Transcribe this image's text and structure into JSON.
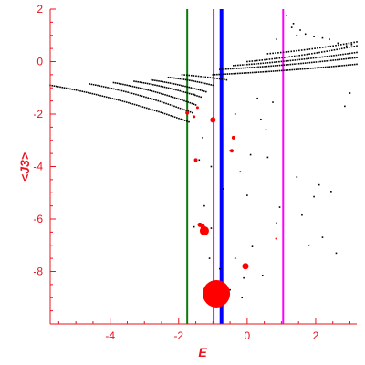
{
  "chart_data": {
    "type": "scatter",
    "title": "",
    "xlabel": "E",
    "ylabel": "<J3>",
    "xlim": [
      -5.75,
      3.2
    ],
    "ylim": [
      -10.0,
      2.0
    ],
    "x_ticks": [
      -4,
      -2,
      0,
      2
    ],
    "y_ticks": [
      2,
      0,
      -2,
      -4,
      -6,
      -8
    ],
    "grid": false,
    "colors": {
      "axis": "#e8141e",
      "black_points": "#000000",
      "red_points": "#ff0000",
      "green_line": "#0a7a0a",
      "blue_line": "#0000ff",
      "magenta_line": "#ff00ff"
    },
    "vertical_lines": [
      {
        "x": -1.75,
        "color": "#0a7a0a",
        "width": 2
      },
      {
        "x": -0.98,
        "color": "#ff00ff",
        "width": 2
      },
      {
        "x": -0.75,
        "color": "#0000ff",
        "width": 4
      },
      {
        "x": 1.05,
        "color": "#ff00ff",
        "width": 2
      }
    ],
    "black_bands": [
      {
        "x_start": -5.75,
        "y_start": -0.9,
        "x_end": -1.7,
        "y_end": -2.3,
        "n": 70
      },
      {
        "x_start": -4.6,
        "y_start": -0.85,
        "x_end": -1.6,
        "y_end": -1.95,
        "n": 52
      },
      {
        "x_start": -3.9,
        "y_start": -0.8,
        "x_end": -1.5,
        "y_end": -1.65,
        "n": 44
      },
      {
        "x_start": -3.3,
        "y_start": -0.75,
        "x_end": -1.35,
        "y_end": -1.35,
        "n": 36
      },
      {
        "x_start": -2.8,
        "y_start": -0.7,
        "x_end": -1.2,
        "y_end": -1.15,
        "n": 30
      },
      {
        "x_start": -2.3,
        "y_start": -0.6,
        "x_end": -1.0,
        "y_end": -0.9,
        "n": 24
      },
      {
        "x_start": -1.9,
        "y_start": -0.5,
        "x_end": -0.6,
        "y_end": -0.7,
        "n": 20
      },
      {
        "x_start": -1.0,
        "y_start": -0.5,
        "x_end": 3.2,
        "y_end": -0.1,
        "n": 70
      },
      {
        "x_start": -0.8,
        "y_start": -0.3,
        "x_end": 3.2,
        "y_end": 0.15,
        "n": 65
      },
      {
        "x_start": -0.4,
        "y_start": -0.15,
        "x_end": 3.2,
        "y_end": 0.35,
        "n": 55
      },
      {
        "x_start": 0.0,
        "y_start": 0.0,
        "x_end": 3.2,
        "y_end": 0.6,
        "n": 45
      },
      {
        "x_start": 0.6,
        "y_start": 0.3,
        "x_end": 3.2,
        "y_end": 0.75,
        "n": 35
      }
    ],
    "black_points": [
      [
        1.15,
        1.75
      ],
      [
        1.35,
        1.45
      ],
      [
        1.55,
        1.2
      ],
      [
        1.7,
        1.05
      ],
      [
        1.3,
        1.3
      ],
      [
        1.45,
        1.0
      ],
      [
        0.85,
        0.85
      ],
      [
        1.95,
        0.95
      ],
      [
        2.2,
        0.9
      ],
      [
        2.4,
        0.85
      ],
      [
        2.65,
        0.7
      ],
      [
        2.9,
        0.6
      ],
      [
        3.05,
        0.65
      ],
      [
        -0.35,
        -2.0
      ],
      [
        0.4,
        -2.2
      ],
      [
        0.55,
        -2.6
      ],
      [
        -1.3,
        -2.9
      ],
      [
        -0.5,
        -3.4
      ],
      [
        0.1,
        -3.55
      ],
      [
        0.6,
        -3.65
      ],
      [
        -1.4,
        -3.75
      ],
      [
        -1.05,
        -4.0
      ],
      [
        -0.2,
        -4.2
      ],
      [
        1.45,
        -4.4
      ],
      [
        2.1,
        -4.7
      ],
      [
        2.45,
        -4.95
      ],
      [
        -0.7,
        -4.85
      ],
      [
        0.0,
        -5.1
      ],
      [
        1.95,
        -5.15
      ],
      [
        0.95,
        -5.55
      ],
      [
        -1.25,
        -5.5
      ],
      [
        1.6,
        -5.85
      ],
      [
        -1.05,
        -6.35
      ],
      [
        -1.55,
        -6.3
      ],
      [
        0.85,
        -6.15
      ],
      [
        2.2,
        -6.7
      ],
      [
        0.15,
        -7.05
      ],
      [
        -1.1,
        -7.5
      ],
      [
        2.85,
        -1.7
      ],
      [
        3.0,
        -1.2
      ],
      [
        0.3,
        -1.4
      ],
      [
        0.75,
        -1.55
      ],
      [
        -1.55,
        -1.25
      ],
      [
        -0.1,
        -8.25
      ],
      [
        0.45,
        -8.15
      ],
      [
        -0.35,
        -7.5
      ],
      [
        -0.8,
        -7.9
      ],
      [
        -1.2,
        -8.85
      ],
      [
        -0.5,
        -8.7
      ],
      [
        -0.15,
        -9.0
      ],
      [
        2.6,
        -7.3
      ],
      [
        1.8,
        -7.0
      ]
    ],
    "red_points": [
      {
        "x": -0.9,
        "y": -8.85,
        "r": 15
      },
      {
        "x": -1.25,
        "y": -6.45,
        "r": 5
      },
      {
        "x": -0.05,
        "y": -7.8,
        "r": 3.5
      },
      {
        "x": -1.38,
        "y": -6.22,
        "r": 2.5
      },
      {
        "x": -1.3,
        "y": -6.28,
        "r": 2.5
      },
      {
        "x": -1.0,
        "y": -2.22,
        "r": 3
      },
      {
        "x": -1.75,
        "y": -1.95,
        "r": 2
      },
      {
        "x": -1.55,
        "y": -2.1,
        "r": 1.5
      },
      {
        "x": -0.4,
        "y": -2.9,
        "r": 2
      },
      {
        "x": -0.45,
        "y": -3.4,
        "r": 2
      },
      {
        "x": -1.5,
        "y": -3.75,
        "r": 2
      },
      {
        "x": -1.45,
        "y": -1.75,
        "r": 1.5
      },
      {
        "x": 0.85,
        "y": -6.75,
        "r": 1.2
      }
    ]
  }
}
